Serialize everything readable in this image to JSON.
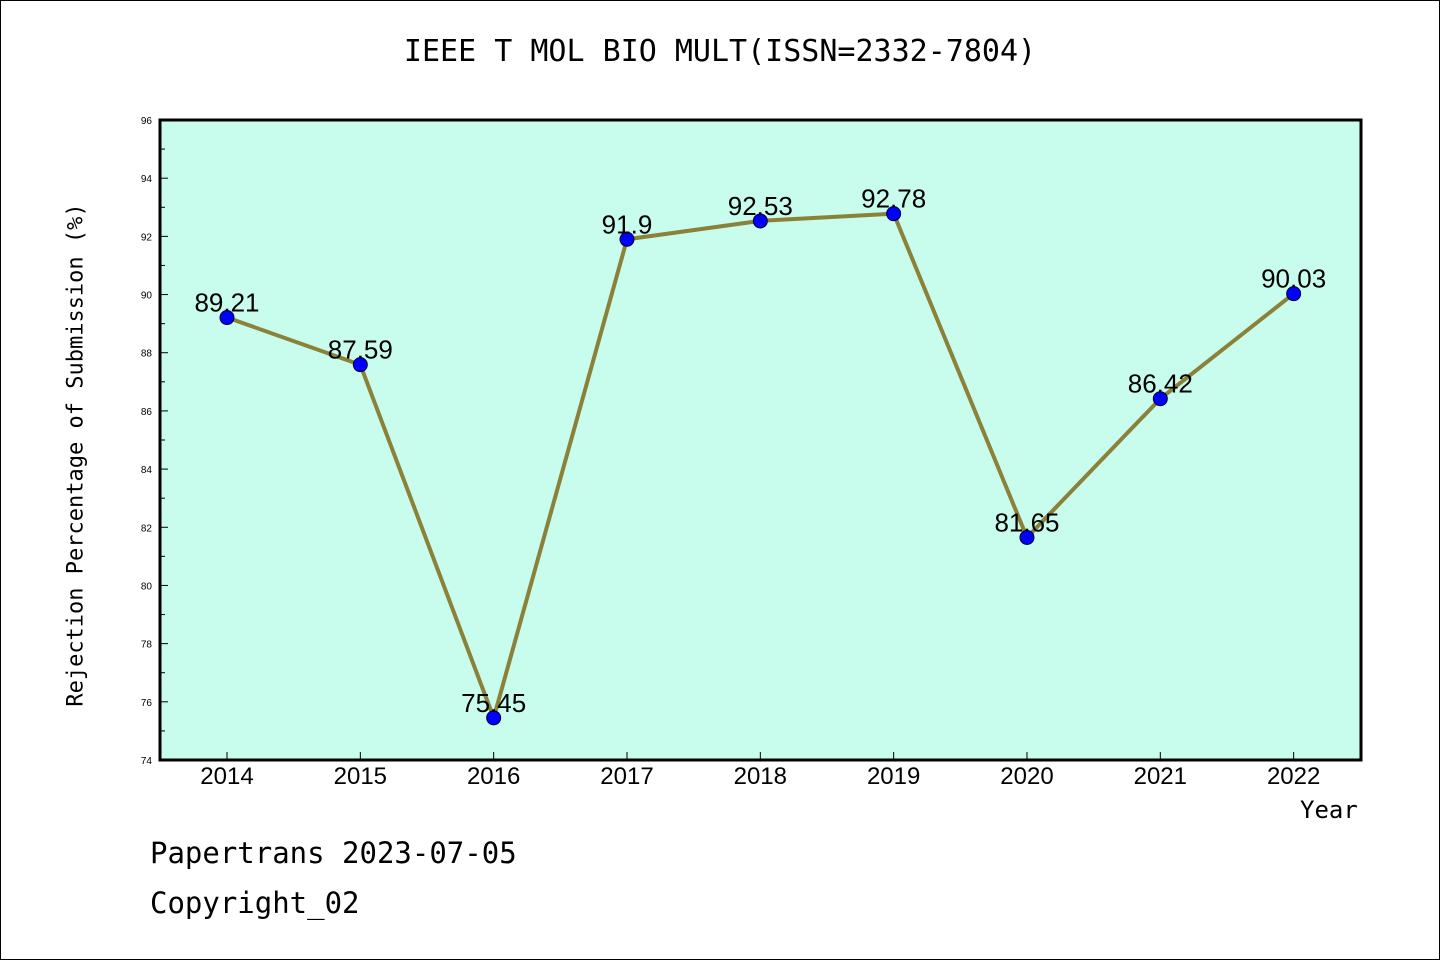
{
  "chart_data": {
    "type": "line",
    "title": "IEEE T MOL BIO MULT(ISSN=2332-7804)",
    "xlabel": "Year",
    "ylabel": "Rejection Percentage of Submission (%)",
    "categories": [
      "2014",
      "2015",
      "2016",
      "2017",
      "2018",
      "2019",
      "2020",
      "2021",
      "2022"
    ],
    "values": [
      89.21,
      87.59,
      75.45,
      91.9,
      92.53,
      92.78,
      81.65,
      86.42,
      90.03
    ],
    "data_labels": [
      "89.21",
      "87.59",
      "75.45",
      "91.9",
      "92.53",
      "92.78",
      "81.65",
      "86.42",
      "90.03"
    ],
    "yticks": [
      "74",
      "76",
      "78",
      "80",
      "82",
      "84",
      "86",
      "88",
      "90",
      "92",
      "94",
      "96"
    ],
    "ylim": [
      74,
      96
    ],
    "grid": false,
    "legend": "none",
    "colors": {
      "plot_background": "#c8fced",
      "line": "#8b8138",
      "marker": "#0000ff"
    }
  },
  "footer": {
    "line1": "Papertrans 2023-07-05",
    "line2": "Copyright_02"
  }
}
